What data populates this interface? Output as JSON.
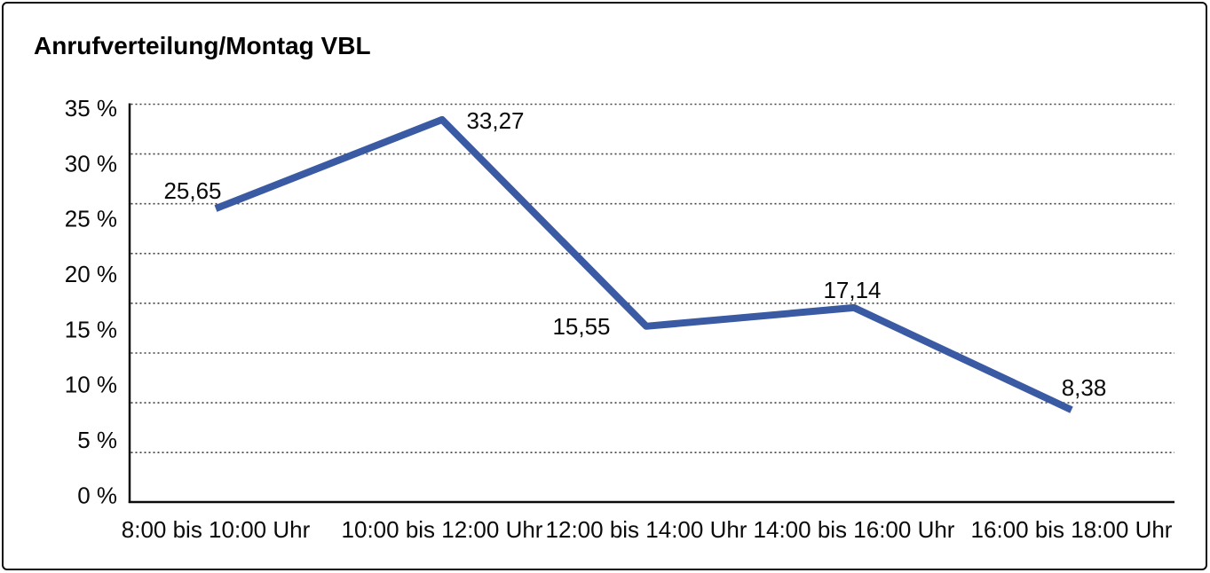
{
  "figure": {
    "background_color": "#ffffff",
    "border_color": "#000000"
  },
  "chart_data": {
    "type": "line",
    "title": "Anrufverteilung/Montag VBL",
    "categories": [
      "8:00 bis 10:00 Uhr",
      "10:00 bis 12:00 Uhr",
      "12:00 bis 14:00 Uhr",
      "14:00 bis 16:00 Uhr",
      "16:00 bis 18:00 Uhr"
    ],
    "series": [
      {
        "name": "Anrufverteilung Montag VBL",
        "values": [
          25.65,
          33.27,
          15.55,
          17.14,
          8.38
        ],
        "point_labels": [
          "25,65",
          "33,27",
          "15,55",
          "17,14",
          "8,38"
        ],
        "color": "#3A5AA3"
      }
    ],
    "xlabel": "",
    "ylabel": "",
    "y_tick_labels": [
      "35 %",
      "30 %",
      "25 %",
      "20 %",
      "15 %",
      "10 %",
      "5 %",
      "0 %"
    ],
    "ylim": [
      0,
      35
    ],
    "y_tick_step": 5,
    "grid": {
      "horizontal": "dotted",
      "vertical": "none",
      "color": "#404040"
    },
    "legend": "none",
    "axis_color": "#000000",
    "text_color": "#0a0a0a"
  }
}
